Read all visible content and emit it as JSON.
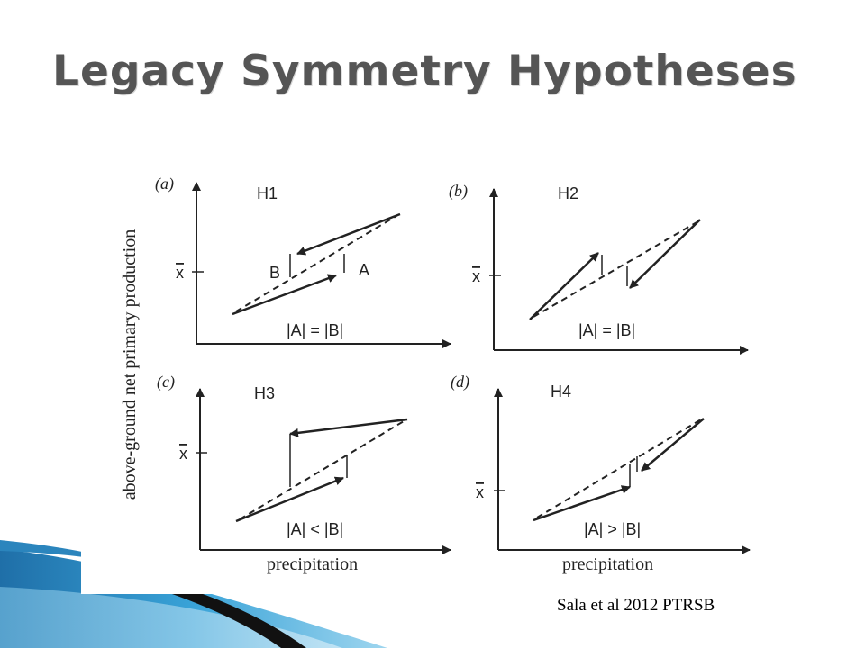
{
  "title": "Legacy Symmetry Hypotheses",
  "citation": "Sala et al 2012 PTRSB",
  "figure": {
    "ylabel": "above-ground net  primary production",
    "xlabel": "precipitation",
    "mean_label": "x",
    "panels": [
      {
        "letter": "(a)",
        "name": "H1",
        "relation": "|A| = |B|",
        "label_b": "B",
        "label_a": "A"
      },
      {
        "letter": "(b)",
        "name": "H2",
        "relation": "|A| = |B|"
      },
      {
        "letter": "(c)",
        "name": "H3",
        "relation": "|A| < |B|"
      },
      {
        "letter": "(d)",
        "name": "H4",
        "relation": "|A| > |B|"
      }
    ]
  },
  "colors": {
    "title": "#555555",
    "ink": "#222222",
    "accent": "#2a8fc4"
  }
}
